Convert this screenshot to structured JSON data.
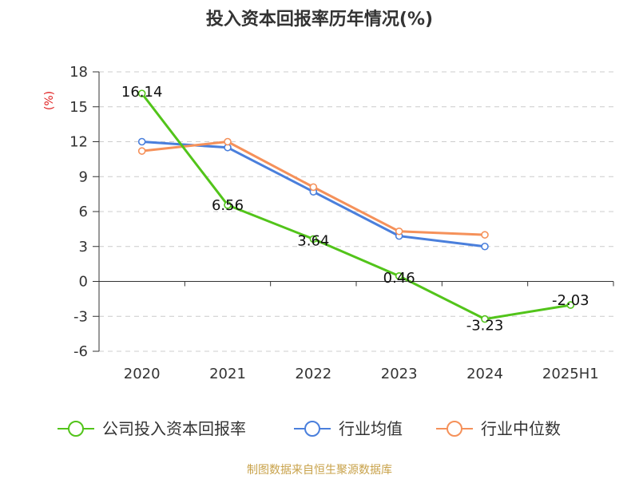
{
  "title": "投入资本回报率历年情况(%)",
  "source": "制图数据来自恒生聚源数据库",
  "chart_data": {
    "type": "line",
    "title": "投入资本回报率历年情况(%)",
    "ylabel": "(%)",
    "xlabel": "",
    "categories": [
      "2020",
      "2021",
      "2022",
      "2023",
      "2024",
      "2025H1"
    ],
    "ylim": [
      -6,
      18
    ],
    "yticks": [
      -6,
      -3,
      0,
      3,
      6,
      9,
      12,
      15,
      18
    ],
    "grid": true,
    "legend_position": "bottom",
    "series": [
      {
        "name": "公司投入资本回报率",
        "color": "#52c41a",
        "values": [
          16.14,
          6.56,
          3.64,
          0.46,
          -3.23,
          -2.03
        ],
        "labels": [
          "16.14",
          "6.56",
          "3.64",
          "0.46",
          "-3.23",
          "-2.03"
        ]
      },
      {
        "name": "行业均值",
        "color": "#4a7fdc",
        "values": [
          12.0,
          11.5,
          7.7,
          3.9,
          3.0,
          null
        ]
      },
      {
        "name": "行业中位数",
        "color": "#f5915a",
        "values": [
          11.2,
          12.0,
          8.1,
          4.3,
          4.0,
          null
        ]
      }
    ]
  }
}
